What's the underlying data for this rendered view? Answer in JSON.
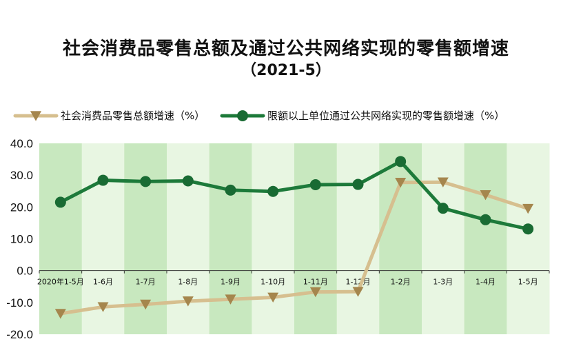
{
  "title": "社会消费品零售总额及通过公共网络实现的零售额增速",
  "subtitle": "（2021-5）",
  "colors": {
    "series1_line": "#d6bf8f",
    "series1_marker": "#a5864d",
    "series2_line": "#1d7a3a",
    "series2_marker": "#196b33",
    "band_dark": "#c8e8bf",
    "band_light": "#e8f6e2"
  },
  "chart_data": {
    "type": "line",
    "categories": [
      "2020年1-5月",
      "1-6月",
      "1-7月",
      "1-8月",
      "1-9月",
      "1-10月",
      "1-11月",
      "1-12月",
      "1-2月",
      "1-3月",
      "1-4月",
      "1-5月"
    ],
    "series": [
      {
        "name": "社会消费品零售总额增速（%）",
        "marker": "triangle-down",
        "values": [
          -13.5,
          -11.4,
          -10.6,
          -9.6,
          -9.0,
          -8.4,
          -6.7,
          -6.6,
          27.7,
          27.8,
          23.8,
          19.5
        ]
      },
      {
        "name": "限额以上单位通过公共网络实现的零售额增速（%）",
        "marker": "circle",
        "values": [
          21.5,
          28.4,
          28.0,
          28.2,
          25.3,
          24.9,
          27.0,
          27.1,
          34.3,
          19.6,
          16.0,
          13.1
        ]
      }
    ],
    "y_ticks": [
      "40.0",
      "30.0",
      "20.0",
      "10.0",
      "0.0",
      "-10.0",
      "-20.0"
    ],
    "ylim": [
      -20,
      40
    ],
    "legend": "top"
  }
}
